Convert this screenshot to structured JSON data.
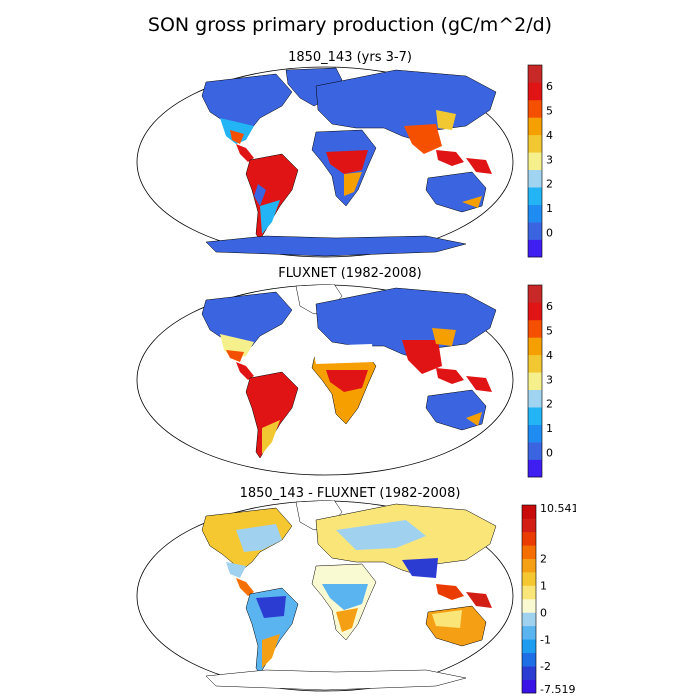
{
  "figure": {
    "title": "SON gross primary production (gC/m^2/d)"
  },
  "panels": [
    {
      "title": "1850_143 (yrs 3-7)",
      "colorbar": {
        "colors": [
          "#3f1ef2",
          "#3a64e0",
          "#1f8cf2",
          "#22b4f5",
          "#a0d4f0",
          "#f5f08c",
          "#f2c832",
          "#f5a000",
          "#f55000",
          "#e01414",
          "#c82828"
        ],
        "tick_labels": [
          "0",
          "1",
          "2",
          "3",
          "4",
          "5",
          "6"
        ]
      }
    },
    {
      "title": "FLUXNET (1982-2008)",
      "colorbar": {
        "colors": [
          "#3f1ef2",
          "#3a64e0",
          "#1f8cf2",
          "#22b4f5",
          "#a0d4f0",
          "#f5f08c",
          "#f2c832",
          "#f5a000",
          "#f55000",
          "#e01414",
          "#c82828"
        ],
        "tick_labels": [
          "0",
          "1",
          "2",
          "3",
          "4",
          "5",
          "6"
        ]
      }
    },
    {
      "title": "1850_143 - FLUXNET (1982-2008)",
      "colorbar": {
        "colors": [
          "#3a14e6",
          "#2a3cd2",
          "#1e6ee6",
          "#1e9cf0",
          "#5ab4f0",
          "#a0d2f0",
          "#fafad2",
          "#fae678",
          "#f5c832",
          "#f5a014",
          "#f56e00",
          "#eb3c00",
          "#d21e14",
          "#c80a0a"
        ],
        "tick_labels": [
          "10.541",
          "2",
          "1",
          "0",
          "-1",
          "-2",
          "-7.519"
        ]
      }
    }
  ]
}
